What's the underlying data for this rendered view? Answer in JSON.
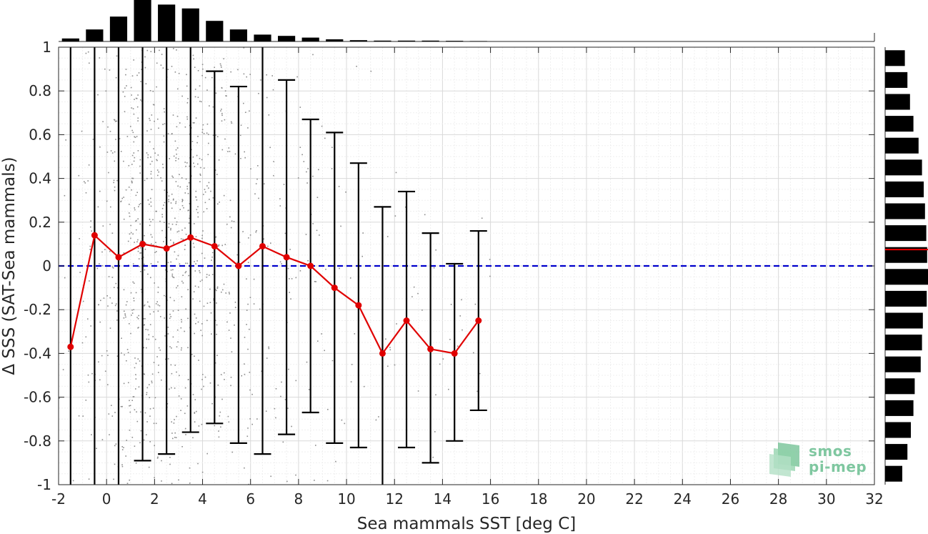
{
  "chart_data": {
    "type": "scatter",
    "xlabel": "Sea mammals SST [deg C]",
    "ylabel": "Δ SSS (SAT-Sea mammals)",
    "xlim": [
      -2,
      32
    ],
    "ylim": [
      -1,
      1
    ],
    "x_ticks": [
      "-2",
      "0",
      "2",
      "4",
      "6",
      "8",
      "10",
      "12",
      "14",
      "16",
      "18",
      "20",
      "22",
      "24",
      "26",
      "28",
      "30",
      "32"
    ],
    "y_ticks": [
      "-1",
      "-0.8",
      "-0.6",
      "-0.4",
      "-0.2",
      "0",
      "0.2",
      "0.4",
      "0.6",
      "0.8",
      "1"
    ],
    "grid": true,
    "reference_line": {
      "y": 0,
      "style": "dashed",
      "color": "#0000cc"
    },
    "binned_mean": {
      "color": "#e00000",
      "x": [
        -1.5,
        -0.5,
        0.5,
        1.5,
        2.5,
        3.5,
        4.5,
        5.5,
        6.5,
        7.5,
        8.5,
        9.5,
        10.5,
        11.5,
        12.5,
        13.5,
        14.5,
        15.5
      ],
      "y": [
        -0.37,
        0.14,
        0.04,
        0.1,
        0.08,
        0.13,
        0.09,
        0.0,
        0.09,
        0.04,
        0.0,
        -0.1,
        -0.18,
        -0.4,
        -0.25,
        -0.38,
        -0.4,
        -0.25
      ]
    },
    "error_bars": {
      "x": [
        -1.5,
        -0.5,
        0.5,
        1.5,
        2.5,
        3.5,
        4.5,
        5.5,
        6.5,
        7.5,
        8.5,
        9.5,
        10.5,
        11.5,
        12.5,
        13.5,
        14.5,
        15.5
      ],
      "lower": [
        -1.0,
        -1.0,
        -1.0,
        -0.89,
        -0.86,
        -0.76,
        -0.72,
        -0.81,
        -0.86,
        -0.77,
        -0.67,
        -0.81,
        -0.83,
        -1.0,
        -0.83,
        -0.9,
        -0.8,
        -0.66
      ],
      "upper": [
        1.0,
        1.0,
        1.0,
        1.0,
        1.0,
        1.0,
        0.89,
        0.82,
        1.0,
        0.85,
        0.67,
        0.61,
        0.47,
        0.27,
        0.34,
        0.15,
        0.01,
        0.16
      ]
    },
    "scatter_color": "#8c8c8c",
    "histogram_top": {
      "bin_centers": [
        -1.5,
        -0.5,
        0.5,
        1.5,
        2.5,
        3.5,
        4.5,
        5.5,
        6.5,
        7.5,
        8.5,
        9.5,
        10.5,
        11.5,
        12.5,
        13.5,
        14.5,
        15.5
      ],
      "relative_counts": [
        0.07,
        0.28,
        0.58,
        1.0,
        0.86,
        0.77,
        0.48,
        0.28,
        0.16,
        0.13,
        0.09,
        0.05,
        0.03,
        0.02,
        0.02,
        0.02,
        0.015,
        0.01
      ]
    },
    "histogram_right": {
      "bin_centers": [
        0.95,
        0.85,
        0.75,
        0.65,
        0.55,
        0.45,
        0.35,
        0.25,
        0.15,
        0.05,
        -0.05,
        -0.15,
        -0.25,
        -0.35,
        -0.45,
        -0.55,
        -0.65,
        -0.75,
        -0.85,
        -0.95
      ],
      "relative_counts": [
        0.46,
        0.52,
        0.58,
        0.66,
        0.78,
        0.86,
        0.9,
        0.93,
        0.96,
        0.98,
        1.0,
        0.97,
        0.88,
        0.86,
        0.83,
        0.69,
        0.66,
        0.6,
        0.52,
        0.4
      ],
      "mean_marker": 0.075,
      "mean_color": "#e00000"
    }
  },
  "logo": {
    "line1": "smos",
    "line2": "pi-mep"
  }
}
